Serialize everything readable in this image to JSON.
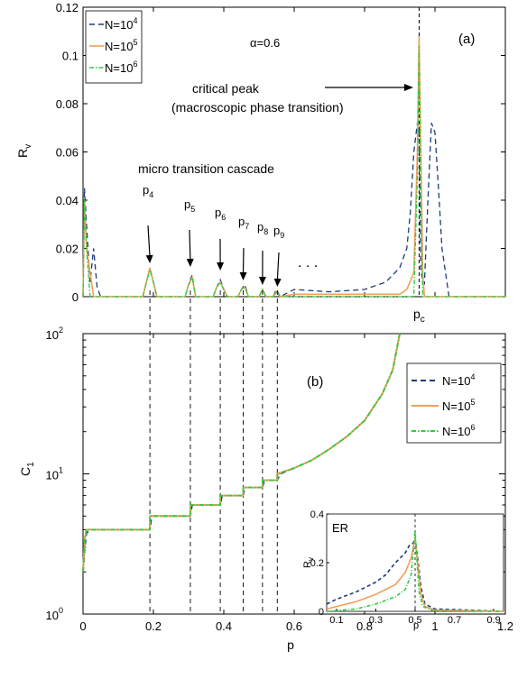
{
  "chart_data": [
    {
      "type": "line",
      "panel_label": "(a)",
      "ylabel_main": "R",
      "ylabel_sub": "v",
      "xlim": [
        0,
        1.2
      ],
      "ylim": [
        0,
        0.12
      ],
      "yticks": [
        "0",
        "0.02",
        "0.04",
        "0.06",
        "0.08",
        "0.1",
        "0.12"
      ],
      "xtick_main": "p",
      "xtick_sub": "c",
      "legend_placement": "top-left",
      "series": [
        {
          "name": "N=10",
          "exp": "4",
          "color": "#1f3a7a",
          "dash": "6,4",
          "x": [
            0,
            0.004,
            0.01,
            0.02,
            0.03,
            0.04,
            0.05,
            0.17,
            0.18,
            0.19,
            0.2,
            0.21,
            0.29,
            0.3,
            0.31,
            0.32,
            0.37,
            0.38,
            0.39,
            0.4,
            0.41,
            0.44,
            0.45,
            0.46,
            0.47,
            0.5,
            0.51,
            0.52,
            0.54,
            0.55,
            0.56,
            0.6,
            0.7,
            0.8,
            0.86,
            0.9,
            0.92,
            0.93,
            0.94,
            0.95,
            0.955,
            0.96,
            0.97,
            0.98,
            0.99,
            1.0,
            1.01,
            1.02,
            1.04,
            1.2
          ],
          "y": [
            0,
            0.045,
            0.03,
            0.006,
            0.02,
            0.004,
            0,
            0,
            0.006,
            0.012,
            0.006,
            0,
            0,
            0.005,
            0.009,
            0,
            0,
            0.004,
            0.007,
            0.003,
            0,
            0,
            0.003,
            0.005,
            0,
            0,
            0.003,
            0,
            0,
            0.003,
            0,
            0.003,
            0.002,
            0.003,
            0.006,
            0.012,
            0.02,
            0.035,
            0.06,
            0.072,
            0.07,
            0.01,
            0.005,
            0.04,
            0.072,
            0.068,
            0.045,
            0.02,
            0,
            0
          ]
        },
        {
          "name": "N=10",
          "exp": "5",
          "color": "#f2a05a",
          "dash": "",
          "x": [
            0,
            0.004,
            0.01,
            0.02,
            0.03,
            0.17,
            0.18,
            0.19,
            0.2,
            0.21,
            0.29,
            0.3,
            0.31,
            0.32,
            0.37,
            0.38,
            0.39,
            0.4,
            0.41,
            0.44,
            0.45,
            0.46,
            0.47,
            0.5,
            0.51,
            0.52,
            0.54,
            0.55,
            0.56,
            0.6,
            0.9,
            0.92,
            0.94,
            0.95,
            0.955,
            0.96,
            0.965,
            0.97,
            1.2
          ],
          "y": [
            0,
            0.04,
            0.02,
            0.01,
            0,
            0,
            0.006,
            0.012,
            0.006,
            0,
            0,
            0.005,
            0.008,
            0,
            0,
            0.004,
            0.006,
            0.003,
            0,
            0,
            0.003,
            0.004,
            0,
            0,
            0.003,
            0,
            0,
            0.002,
            0,
            0.001,
            0.001,
            0.003,
            0.01,
            0.06,
            0.108,
            0.06,
            0.01,
            0,
            0
          ]
        },
        {
          "name": "N=10",
          "exp": "6",
          "color": "#2ecc40",
          "dash": "5,2,1.5,2",
          "x": [
            0,
            0.004,
            0.01,
            0.02,
            0.17,
            0.18,
            0.19,
            0.2,
            0.21,
            0.29,
            0.3,
            0.31,
            0.32,
            0.37,
            0.38,
            0.39,
            0.4,
            0.41,
            0.44,
            0.45,
            0.46,
            0.47,
            0.5,
            0.51,
            0.52,
            0.54,
            0.55,
            0.56,
            0.94,
            0.95,
            0.955,
            0.96,
            0.965,
            1.2
          ],
          "y": [
            0,
            0.04,
            0.02,
            0,
            0,
            0.006,
            0.011,
            0.006,
            0,
            0,
            0.005,
            0.008,
            0,
            0,
            0.004,
            0.006,
            0.003,
            0,
            0,
            0.003,
            0.004,
            0,
            0,
            0.003,
            0,
            0,
            0.002,
            0,
            0,
            0.05,
            0.104,
            0.04,
            0,
            0
          ]
        }
      ],
      "annotations": {
        "alpha": "α=0.6",
        "critical_line1": "critical peak",
        "critical_line2": "(macroscopic phase transition)",
        "cascade": "micro transition cascade",
        "dots": ". . .",
        "arrow_labels": [
          {
            "main": "p",
            "sub": "4",
            "x": 0.19
          },
          {
            "main": "p",
            "sub": "5",
            "x": 0.305
          },
          {
            "main": "p",
            "sub": "6",
            "x": 0.39
          },
          {
            "main": "p",
            "sub": "7",
            "x": 0.455
          },
          {
            "main": "p",
            "sub": "8",
            "x": 0.51
          },
          {
            "main": "p",
            "sub": "9",
            "x": 0.552
          }
        ],
        "pc": 0.955
      }
    },
    {
      "type": "line",
      "panel_label": "(b)",
      "ylabel_main": "C",
      "ylabel_sub": "1",
      "xlabel": "p",
      "xlim": [
        0,
        1.2
      ],
      "ylim": [
        1,
        100
      ],
      "yscale": "log",
      "xticks": [
        "0",
        "0.2",
        "0.4",
        "0.6",
        "0.8",
        "1",
        "1.2"
      ],
      "yticks": [
        {
          "base": "10",
          "exp": "0"
        },
        {
          "base": "10",
          "exp": "1"
        },
        {
          "base": "10",
          "exp": "2"
        }
      ],
      "legend_placement": "top-right",
      "series": [
        {
          "name": "N=10",
          "exp": "4",
          "color": "#1f3a7a",
          "dash": "6,4",
          "x": [
            0,
            0.005,
            0.01,
            0.025,
            0.19,
            0.195,
            0.305,
            0.31,
            0.39,
            0.395,
            0.455,
            0.46,
            0.51,
            0.515,
            0.552,
            0.56,
            0.6,
            0.65,
            0.7,
            0.75,
            0.8,
            0.85,
            0.88,
            0.9
          ],
          "y": [
            2,
            3,
            3.8,
            4,
            4,
            5,
            5,
            6,
            6,
            7,
            7,
            8,
            8,
            9,
            9,
            10,
            11,
            12.5,
            15,
            18.5,
            24,
            37,
            55,
            100
          ]
        },
        {
          "name": "N=10",
          "exp": "5",
          "color": "#f2a05a",
          "dash": "",
          "x": [
            0,
            0.005,
            0.01,
            0.02,
            0.19,
            0.19,
            0.305,
            0.305,
            0.39,
            0.39,
            0.455,
            0.455,
            0.51,
            0.51,
            0.552,
            0.552,
            0.6,
            0.65,
            0.7,
            0.75,
            0.8,
            0.85,
            0.88,
            0.9
          ],
          "y": [
            2,
            3.5,
            4,
            4,
            4,
            5,
            5,
            6,
            6,
            7,
            7,
            8,
            8,
            9,
            9,
            10,
            11,
            12.5,
            15,
            18.5,
            24,
            37,
            55,
            100
          ]
        },
        {
          "name": "N=10",
          "exp": "6",
          "color": "#2ecc40",
          "dash": "5,2,1.5,2",
          "x": [
            0,
            0.005,
            0.01,
            0.02,
            0.19,
            0.19,
            0.305,
            0.305,
            0.39,
            0.39,
            0.455,
            0.455,
            0.51,
            0.51,
            0.552,
            0.552,
            0.6,
            0.65,
            0.7,
            0.75,
            0.8,
            0.85,
            0.88,
            0.9
          ],
          "y": [
            2,
            3.5,
            4,
            4,
            4,
            5,
            5,
            6,
            6,
            7,
            7,
            8,
            8,
            9,
            9,
            10,
            11,
            12.5,
            15,
            18.5,
            24,
            37,
            55,
            100
          ]
        }
      ],
      "inset": {
        "label": "ER",
        "ylabel_main": "R",
        "ylabel_sub": "v",
        "xlabel": "p",
        "xlim": [
          0.05,
          0.95
        ],
        "ylim": [
          0,
          0.4
        ],
        "xticks": [
          "0.1",
          "0.3",
          "0.5",
          "0.7",
          "0.9"
        ],
        "yticks": [
          "0",
          "0.2",
          "0.4"
        ],
        "pc": 0.5,
        "series": [
          {
            "color": "#1f3a7a",
            "dash": "4,3",
            "x": [
              0.05,
              0.1,
              0.2,
              0.3,
              0.35,
              0.4,
              0.45,
              0.47,
              0.49,
              0.5,
              0.51,
              0.53,
              0.55,
              0.6,
              0.95
            ],
            "y": [
              0.03,
              0.05,
              0.08,
              0.12,
              0.15,
              0.2,
              0.24,
              0.27,
              0.28,
              0.3,
              0.24,
              0.1,
              0.03,
              0.01,
              0
            ]
          },
          {
            "color": "#f2a05a",
            "dash": "",
            "x": [
              0.05,
              0.1,
              0.2,
              0.3,
              0.4,
              0.45,
              0.48,
              0.5,
              0.51,
              0.53,
              0.55,
              0.6,
              0.95
            ],
            "y": [
              0.01,
              0.02,
              0.04,
              0.07,
              0.11,
              0.16,
              0.22,
              0.3,
              0.22,
              0.07,
              0.02,
              0.005,
              0
            ]
          },
          {
            "color": "#2ecc40",
            "dash": "4,2,1,2",
            "x": [
              0.05,
              0.2,
              0.3,
              0.4,
              0.45,
              0.48,
              0.5,
              0.51,
              0.52,
              0.54,
              0.6,
              0.95
            ],
            "y": [
              0,
              0.01,
              0.03,
              0.06,
              0.09,
              0.15,
              0.33,
              0.2,
              0.08,
              0.02,
              0,
              0
            ]
          }
        ]
      }
    }
  ]
}
